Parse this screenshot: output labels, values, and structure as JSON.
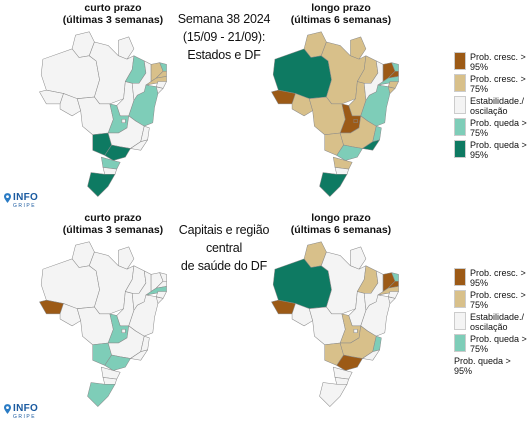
{
  "top": {
    "left_subtitle": [
      "curto prazo",
      "(últimas 3 semanas)"
    ],
    "center_title": [
      "Semana 38 2024",
      "(15/09 - 21/09):",
      "Estados e DF"
    ],
    "right_subtitle": [
      "longo prazo",
      "(últimas 6 semanas)"
    ]
  },
  "bottom": {
    "left_subtitle": [
      "curto prazo",
      "(últimas 3 semanas)"
    ],
    "center_title": [
      "Capitais e região central",
      "de saúde do DF"
    ],
    "right_subtitle": [
      "longo prazo",
      "(últimas 6 semanas)"
    ]
  },
  "legend": [
    {
      "label": "Prob. cresc. > 95%",
      "color": "#9c5a16"
    },
    {
      "label": "Prob. cresc. > 75%",
      "color": "#d8c08a"
    },
    {
      "label": "Estabilidade./ oscilação",
      "color": "#f4f4f4"
    },
    {
      "label": "Prob. queda > 75%",
      "color": "#7ecdb8"
    },
    {
      "label": "Prob. queda > 95%",
      "color": "#0e7a62"
    }
  ],
  "logo": {
    "big": "INFO",
    "small": "GRIPE"
  },
  "maps": {
    "top_short": {
      "AM": "#f4f4f4",
      "RR": "#f4f4f4",
      "AP": "#f4f4f4",
      "PA": "#f4f4f4",
      "AC": "#f4f4f4",
      "RO": "#f4f4f4",
      "MT": "#f4f4f4",
      "TO": "#f4f4f4",
      "MA": "#7ecdb8",
      "PI": "#f4f4f4",
      "CE": "#d8c08a",
      "RN": "#7ecdb8",
      "PB": "#d8c08a",
      "PE": "#d8c08a",
      "AL": "#f4f4f4",
      "SE": "#f4f4f4",
      "BA": "#7ecdb8",
      "GO": "#7ecdb8",
      "DF": "#f4f4f4",
      "MS": "#0e7a62",
      "MG": "#f4f4f4",
      "ES": "#f4f4f4",
      "RJ": "#f4f4f4",
      "SP": "#0e7a62",
      "PR": "#7ecdb8",
      "SC": "#f4f4f4",
      "RS": "#0e7a62"
    },
    "top_long": {
      "AM": "#0e7a62",
      "RR": "#d8c08a",
      "AP": "#d8c08a",
      "PA": "#d8c08a",
      "AC": "#9c5a16",
      "RO": "#d8c08a",
      "MT": "#d8c08a",
      "TO": "#d8c08a",
      "MA": "#d8c08a",
      "PI": "#f4f4f4",
      "CE": "#9c5a16",
      "RN": "#7ecdb8",
      "PB": "#9c5a16",
      "PE": "#7ecdb8",
      "AL": "#d8c08a",
      "SE": "#d8c08a",
      "BA": "#7ecdb8",
      "GO": "#9c5a16",
      "DF": "#9c5a16",
      "MS": "#d8c08a",
      "MG": "#d8c08a",
      "ES": "#7ecdb8",
      "RJ": "#0e7a62",
      "SP": "#7ecdb8",
      "PR": "#d8c08a",
      "SC": "#f4f4f4",
      "RS": "#0e7a62"
    },
    "bottom_short": {
      "AM": "#f4f4f4",
      "RR": "#f4f4f4",
      "AP": "#f4f4f4",
      "PA": "#f4f4f4",
      "AC": "#9c5a16",
      "RO": "#f4f4f4",
      "MT": "#f4f4f4",
      "TO": "#f4f4f4",
      "MA": "#f4f4f4",
      "PI": "#f4f4f4",
      "CE": "#f4f4f4",
      "RN": "#f4f4f4",
      "PB": "#f4f4f4",
      "PE": "#7ecdb8",
      "AL": "#f4f4f4",
      "SE": "#f4f4f4",
      "BA": "#f4f4f4",
      "GO": "#7ecdb8",
      "DF": "#f4f4f4",
      "MS": "#7ecdb8",
      "MG": "#f4f4f4",
      "ES": "#f4f4f4",
      "RJ": "#f4f4f4",
      "SP": "#7ecdb8",
      "PR": "#f4f4f4",
      "SC": "#f4f4f4",
      "RS": "#7ecdb8"
    },
    "bottom_long": {
      "AM": "#0e7a62",
      "RR": "#d8c08a",
      "AP": "#f4f4f4",
      "PA": "#f4f4f4",
      "AC": "#9c5a16",
      "RO": "#f4f4f4",
      "MT": "#f4f4f4",
      "TO": "#f4f4f4",
      "MA": "#d8c08a",
      "PI": "#f4f4f4",
      "CE": "#9c5a16",
      "RN": "#7ecdb8",
      "PB": "#9c5a16",
      "PE": "#d8c08a",
      "AL": "#f4f4f4",
      "SE": "#f4f4f4",
      "BA": "#f4f4f4",
      "GO": "#d8c08a",
      "DF": "#f4f4f4",
      "MS": "#d8c08a",
      "MG": "#d8c08a",
      "ES": "#7ecdb8",
      "RJ": "#f4f4f4",
      "SP": "#9c5a16",
      "PR": "#f4f4f4",
      "SC": "#f4f4f4",
      "RS": "#f4f4f4"
    }
  }
}
